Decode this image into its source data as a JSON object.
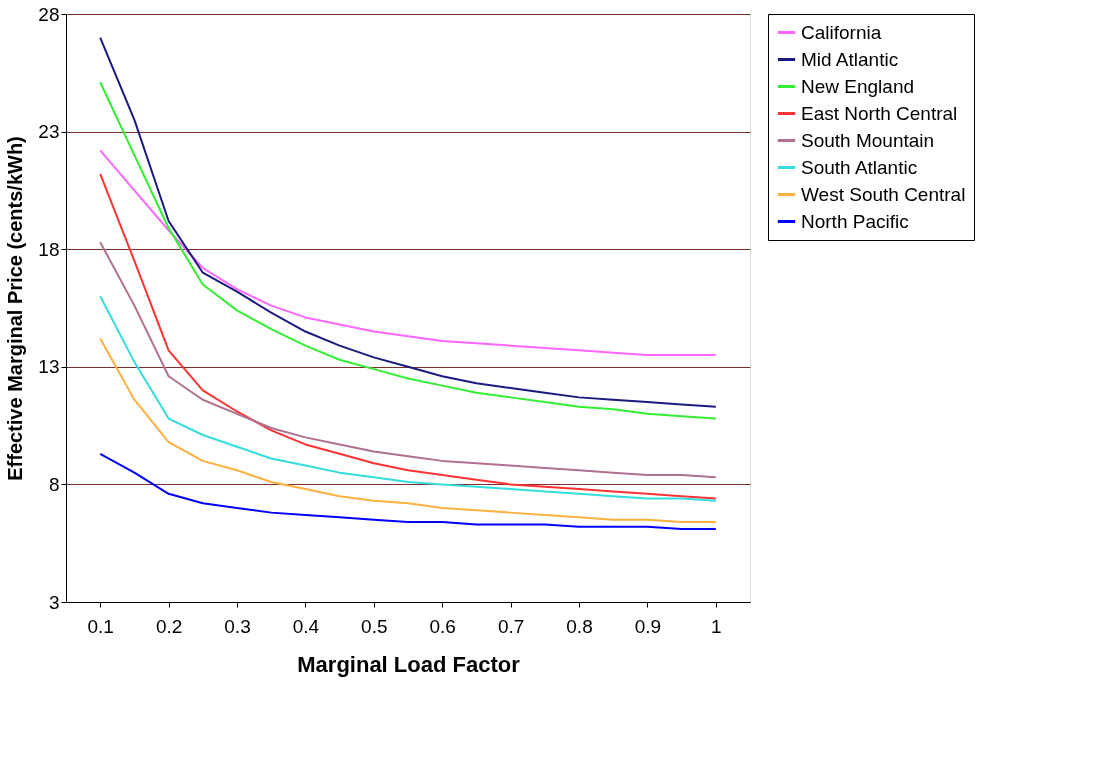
{
  "chart_data": {
    "type": "line",
    "xlabel": "Marginal Load Factor",
    "ylabel": "Effective Marginal Price (cents/kWh)",
    "x": [
      0.1,
      0.15,
      0.2,
      0.25,
      0.3,
      0.35,
      0.4,
      0.45,
      0.5,
      0.55,
      0.6,
      0.65,
      0.7,
      0.75,
      0.8,
      0.85,
      0.9,
      0.95,
      1
    ],
    "xlim": [
      0.05,
      1.05
    ],
    "xticks": [
      0.1,
      0.2,
      0.3,
      0.4,
      0.5,
      0.6,
      0.7,
      0.8,
      0.9,
      1
    ],
    "ylim": [
      3,
      28
    ],
    "yticks": [
      3,
      8,
      13,
      18,
      23,
      28
    ],
    "grid": "y",
    "legend": "right",
    "marker": "none",
    "line_style": "solid",
    "series": [
      {
        "name": "California",
        "color": "#ff66ff",
        "values": [
          22.2,
          20.5,
          18.8,
          17.2,
          16.3,
          15.6,
          15.1,
          14.8,
          14.5,
          14.3,
          14.1,
          14.0,
          13.9,
          13.8,
          13.7,
          13.6,
          13.5,
          13.5,
          13.5
        ]
      },
      {
        "name": "Mid Atlantic",
        "color": "#1a1a80",
        "values": [
          27.0,
          23.5,
          19.2,
          17.0,
          16.2,
          15.3,
          14.5,
          13.9,
          13.4,
          13.0,
          12.6,
          12.3,
          12.1,
          11.9,
          11.7,
          11.6,
          11.5,
          11.4,
          11.3
        ]
      },
      {
        "name": "New England",
        "color": "#33ee33",
        "values": [
          25.1,
          22.0,
          18.9,
          16.5,
          15.4,
          14.6,
          13.9,
          13.3,
          12.9,
          12.5,
          12.2,
          11.9,
          11.7,
          11.5,
          11.3,
          11.2,
          11.0,
          10.9,
          10.8
        ]
      },
      {
        "name": "East North Central",
        "color": "#ff3333",
        "values": [
          21.2,
          17.5,
          13.7,
          12.0,
          11.1,
          10.3,
          9.7,
          9.3,
          8.9,
          8.6,
          8.4,
          8.2,
          8.0,
          7.9,
          7.8,
          7.7,
          7.6,
          7.5,
          7.4
        ]
      },
      {
        "name": "South Mountain",
        "color": "#b07090",
        "values": [
          18.3,
          15.6,
          12.6,
          11.6,
          11.0,
          10.4,
          10.0,
          9.7,
          9.4,
          9.2,
          9.0,
          8.9,
          8.8,
          8.7,
          8.6,
          8.5,
          8.4,
          8.4,
          8.3
        ]
      },
      {
        "name": "South Atlantic",
        "color": "#33dddd",
        "values": [
          16.0,
          13.2,
          10.8,
          10.1,
          9.6,
          9.1,
          8.8,
          8.5,
          8.3,
          8.1,
          8.0,
          7.9,
          7.8,
          7.7,
          7.6,
          7.5,
          7.4,
          7.4,
          7.3
        ]
      },
      {
        "name": "West South Central",
        "color": "#ffb040",
        "values": [
          14.2,
          11.6,
          9.8,
          9.0,
          8.6,
          8.1,
          7.8,
          7.5,
          7.3,
          7.2,
          7.0,
          6.9,
          6.8,
          6.7,
          6.6,
          6.5,
          6.5,
          6.4,
          6.4
        ]
      },
      {
        "name": "North Pacific",
        "color": "#0000ff",
        "values": [
          9.3,
          8.5,
          7.6,
          7.2,
          7.0,
          6.8,
          6.7,
          6.6,
          6.5,
          6.4,
          6.4,
          6.3,
          6.3,
          6.3,
          6.2,
          6.2,
          6.2,
          6.1,
          6.1
        ]
      }
    ]
  }
}
